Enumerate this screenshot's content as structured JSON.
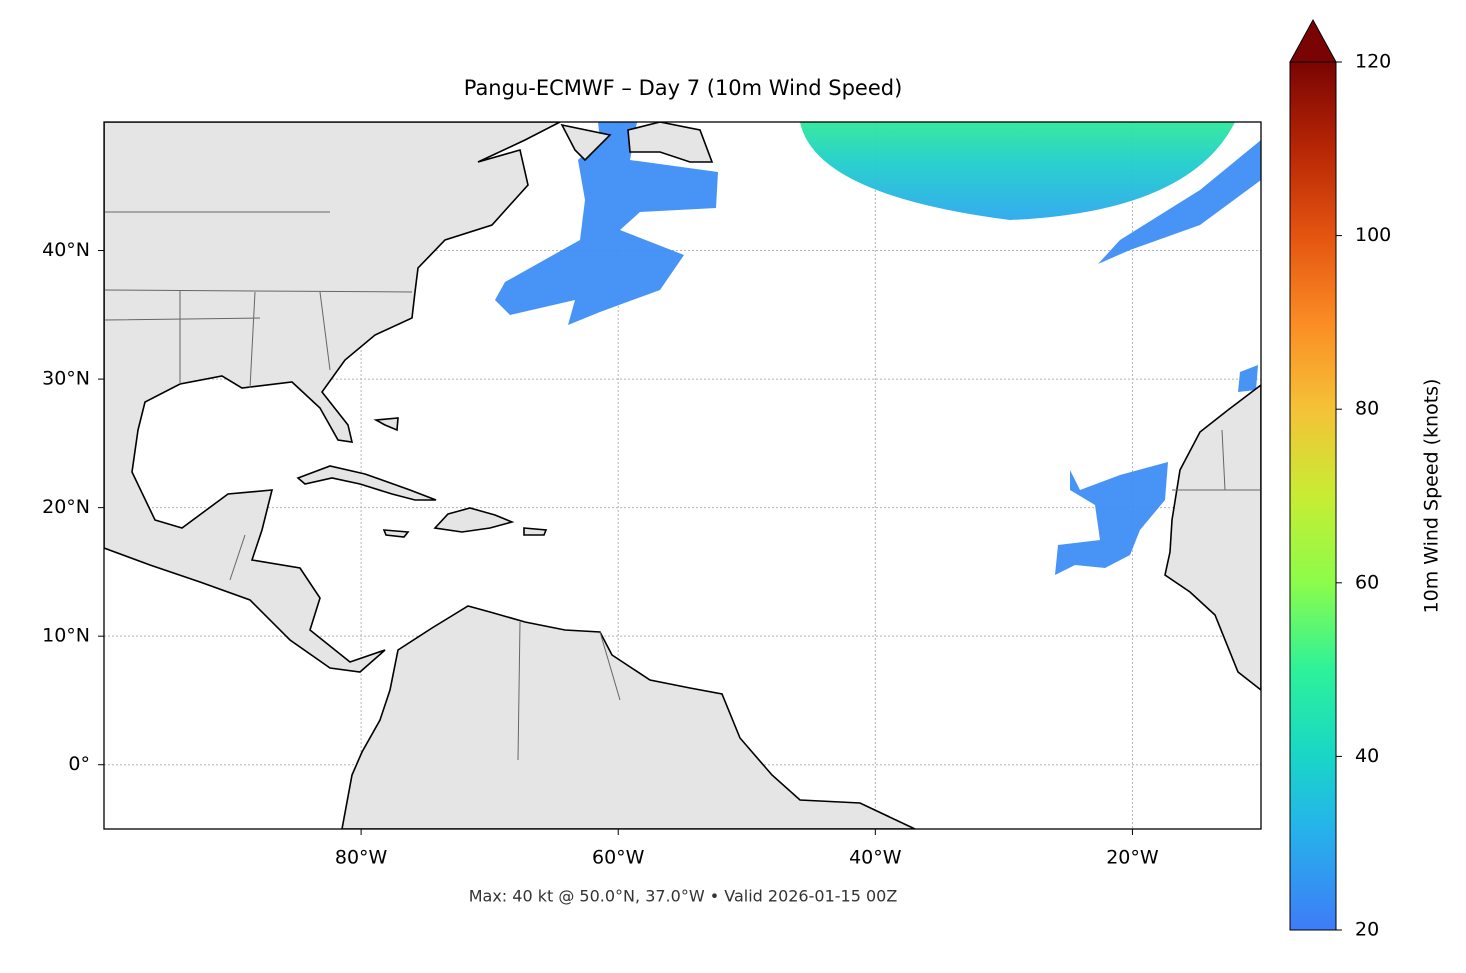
{
  "map": {
    "title": "Pangu-ECMWF – Day 7 (10m Wind Speed)",
    "lon_range": [
      -100,
      -10
    ],
    "lat_range": [
      -5,
      50
    ],
    "lon_ticks": [
      {
        "value": -80,
        "label": "80°W"
      },
      {
        "value": -60,
        "label": "60°W"
      },
      {
        "value": -40,
        "label": "40°W"
      },
      {
        "value": -20,
        "label": "20°W"
      }
    ],
    "lat_ticks": [
      {
        "value": 0,
        "label": "0°"
      },
      {
        "value": 10,
        "label": "10°N"
      },
      {
        "value": 20,
        "label": "20°N"
      },
      {
        "value": 30,
        "label": "30°N"
      },
      {
        "value": 40,
        "label": "40°N"
      }
    ],
    "footer": "Max: 40 kt @ 50.0°N, 37.0°W • Valid 2026-01-15 00Z"
  },
  "colorbar": {
    "label": "10m Wind Speed (knots)",
    "range": [
      20,
      120
    ],
    "ticks": [
      20,
      40,
      60,
      80,
      100,
      120
    ]
  }
}
